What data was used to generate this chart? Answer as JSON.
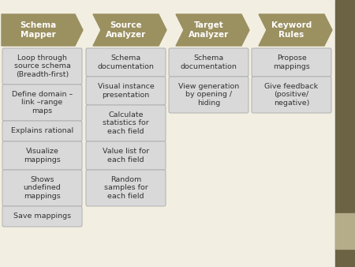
{
  "background_color": "#f2efe2",
  "right_bar_color": "#6b6344",
  "right_bar_light_color": "#b5ad8a",
  "header_color": "#9b9060",
  "header_text_color": "#ffffff",
  "box_facecolor": "#d9d9d9",
  "box_text_color": "#333333",
  "box_edge_color": "#b0b0b0",
  "columns": [
    {
      "header": "Schema\nMapper",
      "col_idx": 0,
      "items": [
        "Loop through\nsource schema\n(Breadth-first)",
        "Define domain –\nlink –range\nmaps",
        "Explains rational",
        "Visualize\nmappings",
        "Shows\nundefined\nmappings",
        "Save mappings"
      ]
    },
    {
      "header": "Source\nAnalyzer",
      "col_idx": 1,
      "items": [
        "Schema\ndocumentation",
        "Visual instance\npresentation",
        "Calculate\nstatistics for\neach field",
        "Value list for\neach field",
        "Random\nsamples for\neach field"
      ]
    },
    {
      "header": "Target\nAnalyzer",
      "col_idx": 2,
      "items": [
        "Schema\ndocumentation",
        "View generation\nby opening /\nhiding"
      ]
    },
    {
      "header": "Keyword\nRules",
      "col_idx": 3,
      "items": [
        "Propose\nmappings",
        "Give feedback\n(positive/\nnegative)"
      ]
    }
  ],
  "fig_width": 4.5,
  "fig_height": 3.38,
  "dpi": 100
}
